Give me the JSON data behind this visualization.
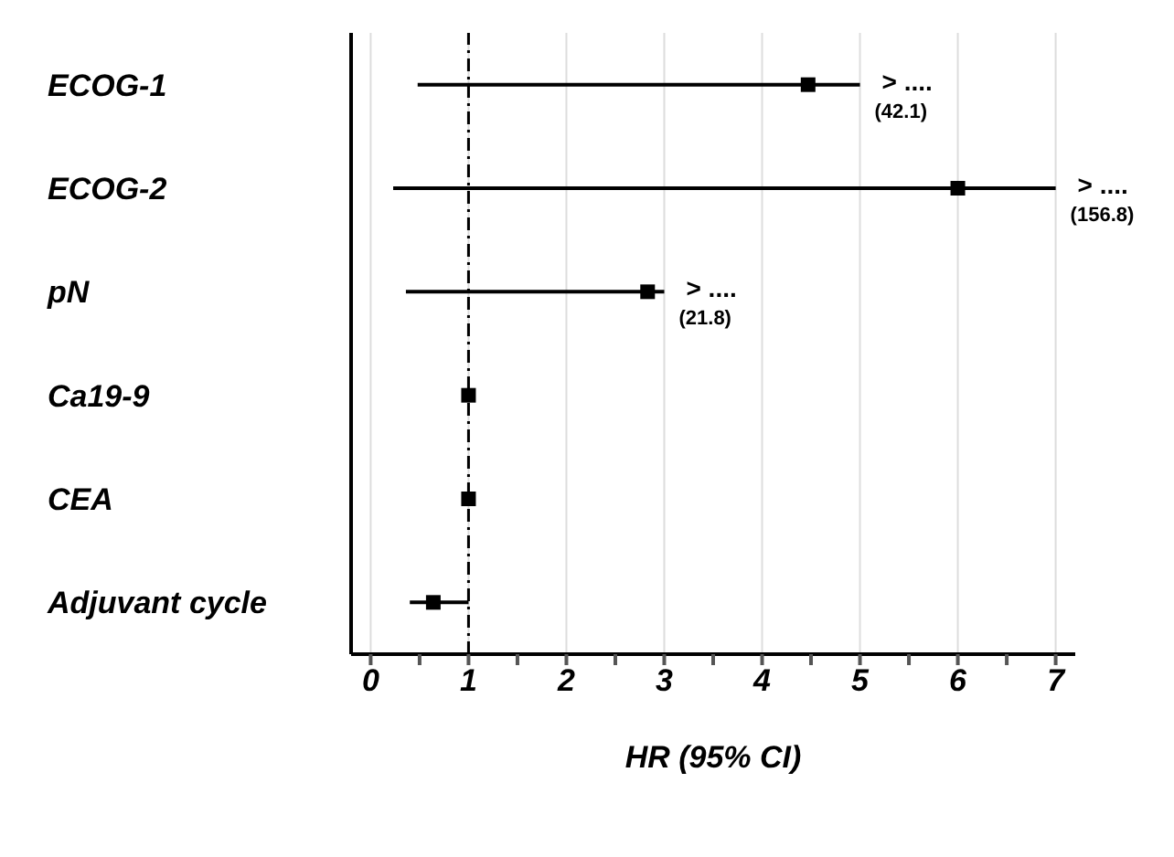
{
  "chart_data": {
    "type": "scatter",
    "orientation": "horizontal",
    "xlabel": "HR (95% CI)",
    "categories": [
      "ECOG-1",
      "ECOG-2",
      "pN",
      "Ca19-9",
      "CEA",
      "Adjuvant cycle"
    ],
    "values": [
      4.47,
      6.0,
      2.83,
      1.0,
      1.0,
      0.64
    ],
    "errors": [
      [
        0.48,
        5.0
      ],
      [
        0.23,
        7.0
      ],
      [
        0.36,
        3.0
      ],
      null,
      null,
      [
        0.4,
        1.0
      ]
    ],
    "color": "#000000",
    "marker": "square",
    "xlim": [
      -0.2,
      7.2
    ],
    "xticks": [
      0,
      {
        "value": 0.5,
        "label": null
      },
      1,
      {
        "value": 1.5,
        "label": null
      },
      2,
      {
        "value": 2.5,
        "label": null
      },
      3,
      {
        "value": 3.5,
        "label": null
      },
      4,
      {
        "value": 4.5,
        "label": null
      },
      5,
      {
        "value": 5.5,
        "label": null
      },
      6,
      {
        "value": 6.5,
        "label": null
      },
      7
    ],
    "grid": "x",
    "ref_lines": [
      {
        "axis": "x",
        "value": 1,
        "line_style": "dashed",
        "color": "#000000"
      }
    ],
    "annotations": [
      {
        "text": "> ....",
        "x": 5.0,
        "y": "ECOG-1"
      },
      {
        "text": "(42.1)",
        "x": 5.0,
        "y": "ECOG-1"
      },
      {
        "text": "> ....",
        "x": 7.0,
        "y": "ECOG-2"
      },
      {
        "text": "(156.8)",
        "x": 7.0,
        "y": "ECOG-2"
      },
      {
        "text": "> ....",
        "x": 3.0,
        "y": "pN"
      },
      {
        "text": "(21.8)",
        "x": 3.0,
        "y": "pN"
      }
    ]
  }
}
